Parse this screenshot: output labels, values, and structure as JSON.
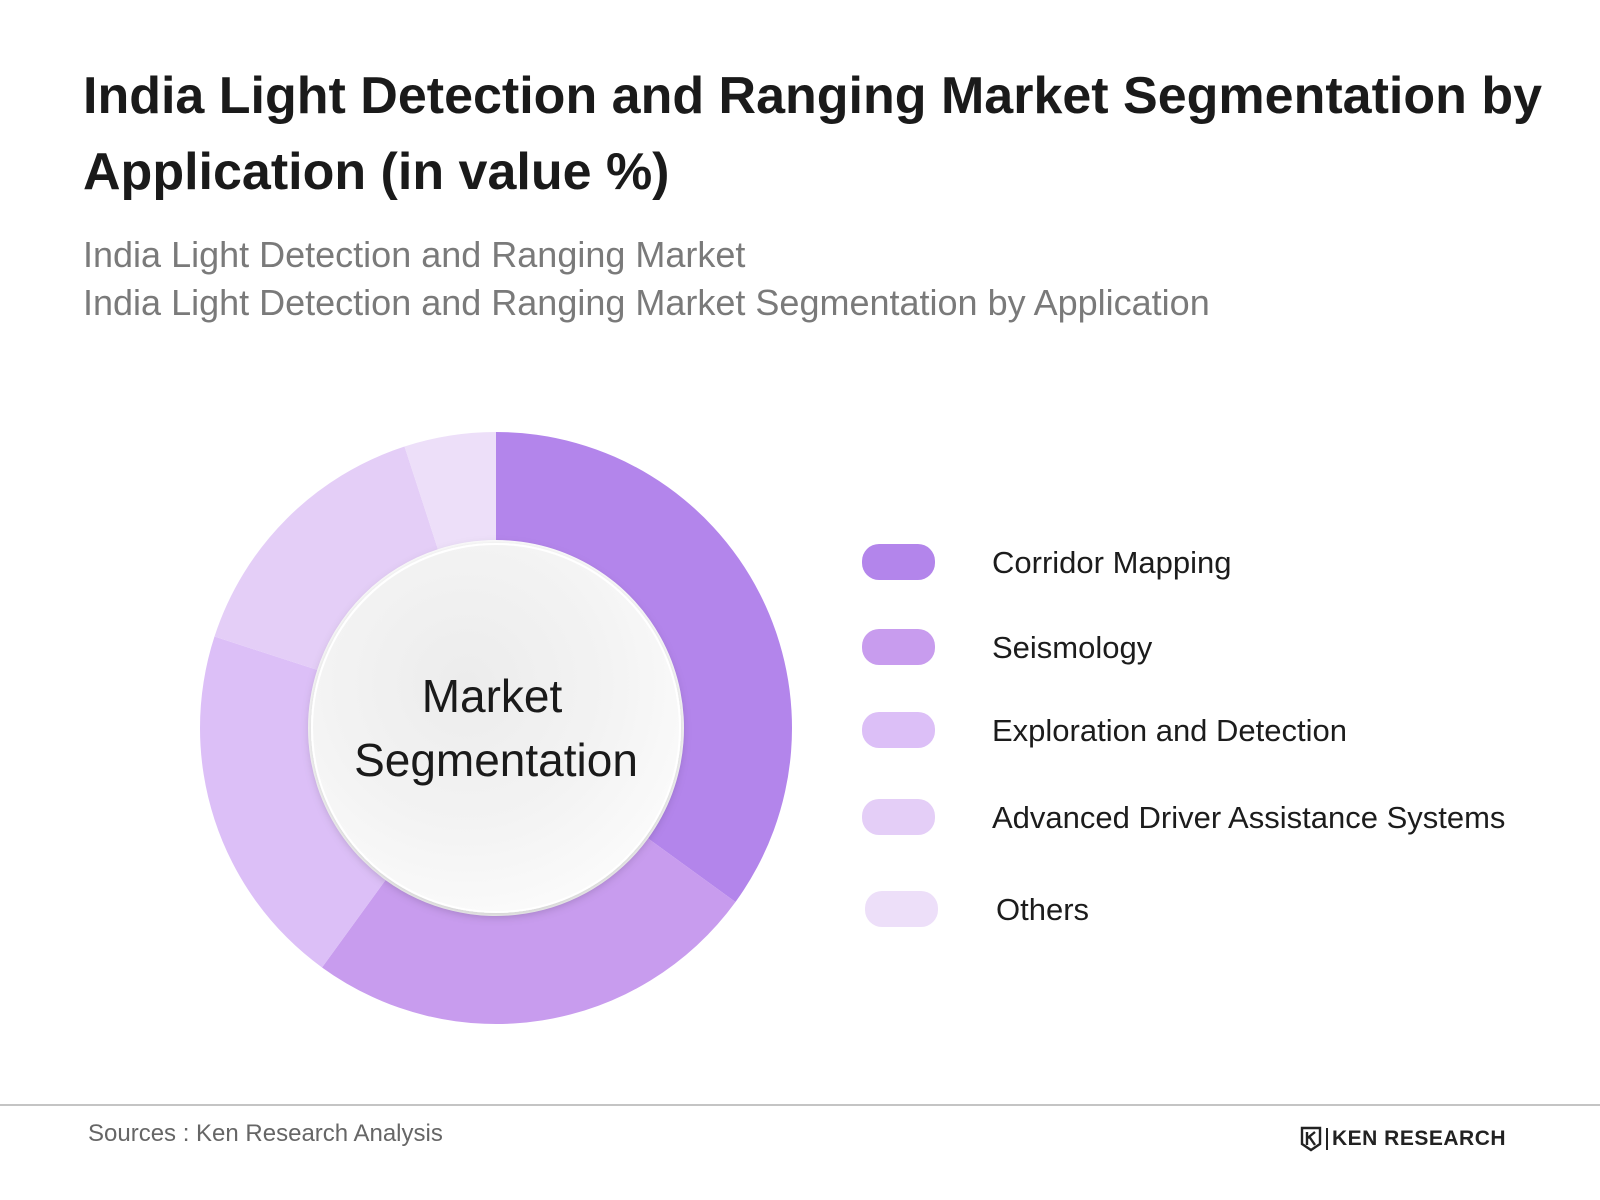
{
  "title": "India Light Detection and Ranging Market Segmentation by Application (in value %)",
  "subtitle_line1": "India Light Detection and Ranging Market",
  "subtitle_line2": "India Light Detection and Ranging Market Segmentation by Application",
  "center_label_line1": "Market",
  "center_label_line2": "Segmentation",
  "footer": {
    "sources": "Sources : Ken Research Analysis",
    "brand": "KEN RESEARCH"
  },
  "chart_data": {
    "type": "pie",
    "variant": "donut",
    "categories": [
      "Corridor Mapping",
      "Seismology",
      "Exploration and Detection",
      "Advanced Driver Assistance Systems",
      "Others"
    ],
    "values": [
      35,
      25,
      20,
      15,
      5
    ],
    "colors": [
      "#b385eb",
      "#c89cee",
      "#dcbff7",
      "#e4cef7",
      "#eddff9"
    ],
    "legend_position": "right"
  }
}
